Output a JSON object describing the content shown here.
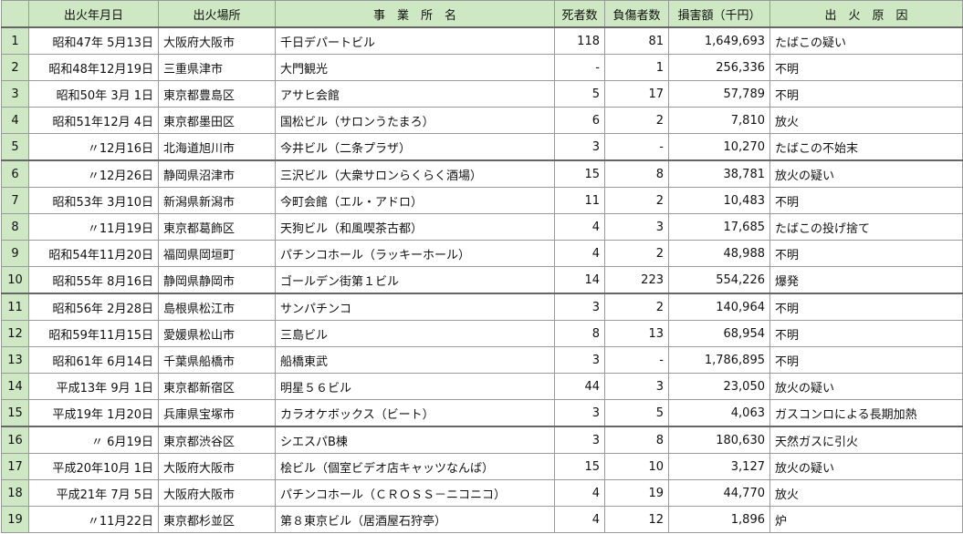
{
  "headers": {
    "blank": "",
    "date": "出火年月日",
    "place": "出火場所",
    "name": "事　業　所　名",
    "deaths": "死者数",
    "injured": "負傷者数",
    "damage": "損害額（千円）",
    "cause": "出　火　原　因"
  },
  "rows": [
    {
      "no": "1",
      "date": "昭和47年 5月13日",
      "place": "大阪府大阪市",
      "name": "千日デパートビル",
      "deaths": "118",
      "injured": "81",
      "damage": "1,649,693",
      "cause": "たばこの疑い"
    },
    {
      "no": "2",
      "date": "昭和48年12月19日",
      "place": "三重県津市",
      "name": "大門観光",
      "deaths": "-",
      "injured": "1",
      "damage": "256,336",
      "cause": "不明"
    },
    {
      "no": "3",
      "date": "昭和50年 3月 1日",
      "place": "東京都豊島区",
      "name": "アサヒ会館",
      "deaths": "5",
      "injured": "17",
      "damage": "57,789",
      "cause": "不明"
    },
    {
      "no": "4",
      "date": "昭和51年12月 4日",
      "place": "東京都墨田区",
      "name": "国松ビル（サロンうたまろ）",
      "deaths": "6",
      "injured": "2",
      "damage": "7,810",
      "cause": "放火"
    },
    {
      "no": "5",
      "date": "〃12月16日",
      "place": "北海道旭川市",
      "name": "今井ビル（二条プラザ）",
      "deaths": "3",
      "injured": "-",
      "damage": "10,270",
      "cause": "たばこの不始末"
    },
    {
      "no": "6",
      "date": "〃12月26日",
      "place": "静岡県沼津市",
      "name": "三沢ビル（大衆サロンらくらく酒場）",
      "deaths": "15",
      "injured": "8",
      "damage": "38,781",
      "cause": "放火の疑い"
    },
    {
      "no": "7",
      "date": "昭和53年 3月10日",
      "place": "新潟県新潟市",
      "name": "今町会館（エル・アドロ）",
      "deaths": "11",
      "injured": "2",
      "damage": "10,483",
      "cause": "不明"
    },
    {
      "no": "8",
      "date": "〃11月19日",
      "place": "東京都葛飾区",
      "name": "天狗ビル（和風喫茶古都）",
      "deaths": "4",
      "injured": "3",
      "damage": "17,685",
      "cause": "たばこの投げ捨て"
    },
    {
      "no": "9",
      "date": "昭和54年11月20日",
      "place": "福岡県岡垣町",
      "name": "パチンコホール（ラッキーホール）",
      "deaths": "4",
      "injured": "2",
      "damage": "48,988",
      "cause": "不明"
    },
    {
      "no": "10",
      "date": "昭和55年 8月16日",
      "place": "静岡県静岡市",
      "name": "ゴールデン街第１ビル",
      "deaths": "14",
      "injured": "223",
      "damage": "554,226",
      "cause": "爆発"
    },
    {
      "no": "11",
      "date": "昭和56年 2月28日",
      "place": "島根県松江市",
      "name": "サンパチンコ",
      "deaths": "3",
      "injured": "2",
      "damage": "140,964",
      "cause": "不明"
    },
    {
      "no": "12",
      "date": "昭和59年11月15日",
      "place": "愛媛県松山市",
      "name": "三島ビル",
      "deaths": "8",
      "injured": "13",
      "damage": "68,954",
      "cause": "不明"
    },
    {
      "no": "13",
      "date": "昭和61年 6月14日",
      "place": "千葉県船橋市",
      "name": "船橋東武",
      "deaths": "3",
      "injured": "-",
      "damage": "1,786,895",
      "cause": "不明"
    },
    {
      "no": "14",
      "date": "平成13年 9月 1日",
      "place": "東京都新宿区",
      "name": "明星５６ビル",
      "deaths": "44",
      "injured": "3",
      "damage": "23,050",
      "cause": "放火の疑い"
    },
    {
      "no": "15",
      "date": "平成19年 1月20日",
      "place": "兵庫県宝塚市",
      "name": "カラオケボックス（ビート）",
      "deaths": "3",
      "injured": "5",
      "damage": "4,063",
      "cause": "ガスコンロによる長期加熱"
    },
    {
      "no": "16",
      "date": "〃 6月19日",
      "place": "東京都渋谷区",
      "name": "シエスパB棟",
      "deaths": "3",
      "injured": "8",
      "damage": "180,630",
      "cause": "天然ガスに引火"
    },
    {
      "no": "17",
      "date": "平成20年10月 1日",
      "place": "大阪府大阪市",
      "name": "桧ビル（個室ビデオ店キャッツなんば）",
      "deaths": "15",
      "injured": "10",
      "damage": "3,127",
      "cause": "放火の疑い"
    },
    {
      "no": "18",
      "date": "平成21年 7月 5日",
      "place": "大阪府大阪市",
      "name": "パチンコホール（ＣＲＯＳＳ－ニコニコ）",
      "deaths": "4",
      "injured": "19",
      "damage": "44,770",
      "cause": "放火"
    },
    {
      "no": "19",
      "date": "〃11月22日",
      "place": "東京都杉並区",
      "name": "第８東京ビル（居酒屋石狩亭）",
      "deaths": "4",
      "injured": "12",
      "damage": "1,896",
      "cause": "炉"
    }
  ]
}
